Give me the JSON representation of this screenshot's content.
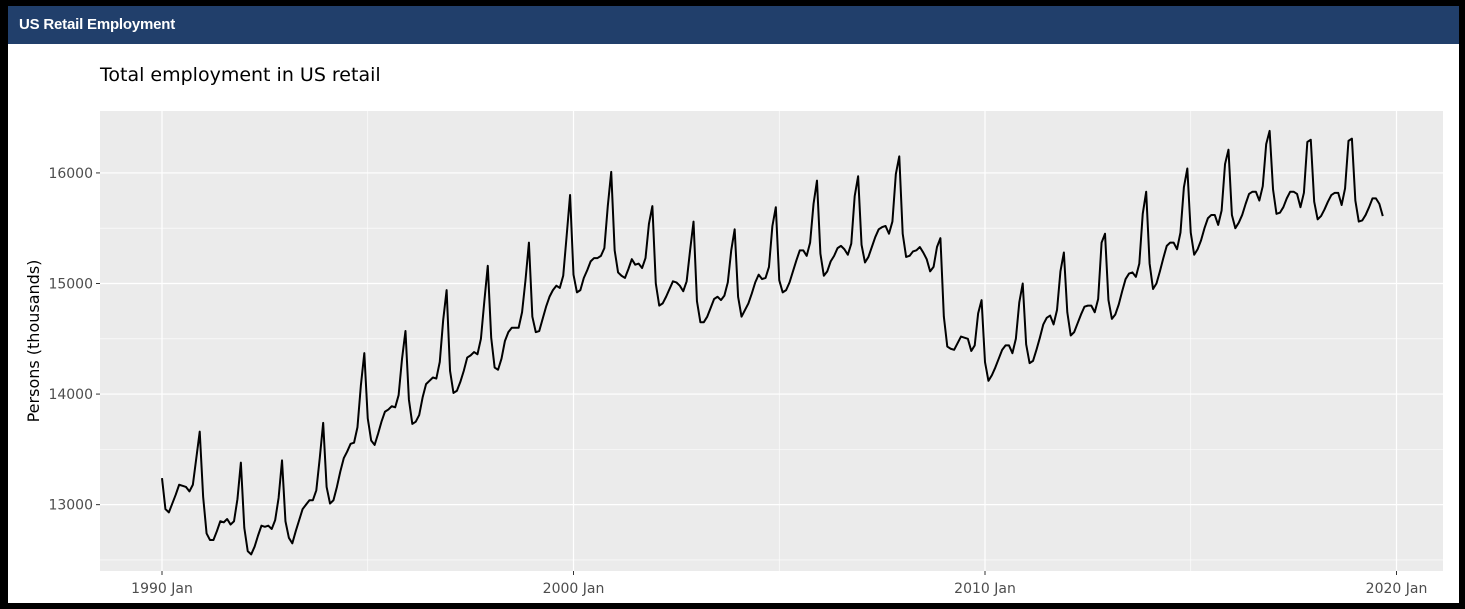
{
  "panel": {
    "title": "US Retail Employment"
  },
  "colors": {
    "header": "#213f6b",
    "plot_bg": "#ebebeb",
    "grid": "#ffffff",
    "line": "#000000",
    "tick_text": "#4d4d4d"
  },
  "chart_data": {
    "type": "line",
    "title": "Total employment in US retail",
    "xlabel": "",
    "ylabel": "Persons (thousands)",
    "x_start": "1990 Jan",
    "frequency": "monthly",
    "x_ticks": [
      "1990 Jan",
      "2000 Jan",
      "2010 Jan",
      "2020 Jan"
    ],
    "y_ticks": [
      13000,
      14000,
      15000,
      16000
    ],
    "ylim": [
      12400,
      16560
    ],
    "grid": true,
    "series": [
      {
        "values": [
          13240,
          12960,
          12930,
          13010,
          13090,
          13180,
          13170,
          13160,
          13120,
          13180,
          13420,
          13660,
          13070,
          12740,
          12680,
          12680,
          12760,
          12850,
          12840,
          12870,
          12820,
          12850,
          13050,
          13380,
          12790,
          12580,
          12550,
          12620,
          12720,
          12810,
          12800,
          12810,
          12780,
          12860,
          13060,
          13400,
          12850,
          12700,
          12650,
          12760,
          12860,
          12960,
          13000,
          13040,
          13040,
          13130,
          13420,
          13740,
          13160,
          13010,
          13040,
          13160,
          13300,
          13420,
          13480,
          13550,
          13560,
          13700,
          14080,
          14370,
          13780,
          13580,
          13540,
          13640,
          13750,
          13840,
          13860,
          13890,
          13880,
          13990,
          14320,
          14570,
          13950,
          13730,
          13750,
          13810,
          13970,
          14090,
          14120,
          14150,
          14140,
          14290,
          14670,
          14940,
          14210,
          14010,
          14030,
          14110,
          14210,
          14330,
          14350,
          14380,
          14360,
          14500,
          14840,
          15160,
          14510,
          14240,
          14220,
          14320,
          14480,
          14560,
          14600,
          14600,
          14600,
          14740,
          15030,
          15370,
          14700,
          14560,
          14570,
          14680,
          14790,
          14880,
          14940,
          14980,
          14960,
          15070,
          15430,
          15800,
          15080,
          14920,
          14940,
          15050,
          15120,
          15200,
          15230,
          15230,
          15250,
          15320,
          15700,
          16010,
          15300,
          15100,
          15070,
          15050,
          15130,
          15220,
          15170,
          15180,
          15140,
          15230,
          15540,
          15700,
          15000,
          14800,
          14820,
          14880,
          14950,
          15020,
          15010,
          14980,
          14930,
          15020,
          15300,
          15560,
          14840,
          14650,
          14650,
          14700,
          14780,
          14860,
          14880,
          14850,
          14890,
          15010,
          15300,
          15490,
          14880,
          14700,
          14760,
          14820,
          14910,
          15010,
          15080,
          15040,
          15050,
          15150,
          15520,
          15690,
          15030,
          14920,
          14940,
          15010,
          15110,
          15210,
          15300,
          15300,
          15250,
          15370,
          15720,
          15930,
          15270,
          15070,
          15110,
          15200,
          15250,
          15320,
          15340,
          15310,
          15260,
          15360,
          15790,
          15970,
          15350,
          15190,
          15240,
          15330,
          15420,
          15490,
          15510,
          15520,
          15450,
          15560,
          15990,
          16150,
          15450,
          15240,
          15250,
          15290,
          15300,
          15330,
          15280,
          15220,
          15110,
          15150,
          15330,
          15410,
          14700,
          14430,
          14410,
          14400,
          14460,
          14520,
          14510,
          14500,
          14390,
          14440,
          14730,
          14850,
          14290,
          14120,
          14170,
          14240,
          14320,
          14400,
          14440,
          14440,
          14370,
          14500,
          14830,
          15000,
          14450,
          14280,
          14300,
          14400,
          14510,
          14630,
          14690,
          14710,
          14630,
          14760,
          15110,
          15280,
          14740,
          14530,
          14560,
          14640,
          14720,
          14790,
          14800,
          14800,
          14740,
          14860,
          15370,
          15450,
          14850,
          14680,
          14720,
          14810,
          14930,
          15040,
          15090,
          15100,
          15060,
          15180,
          15630,
          15830,
          15180,
          14950,
          15000,
          15110,
          15230,
          15340,
          15370,
          15370,
          15310,
          15460,
          15870,
          16040,
          15460,
          15260,
          15310,
          15390,
          15500,
          15590,
          15620,
          15620,
          15530,
          15660,
          16080,
          16210,
          15620,
          15500,
          15550,
          15620,
          15720,
          15810,
          15830,
          15830,
          15750,
          15880,
          16260,
          16380,
          15850,
          15630,
          15640,
          15690,
          15770,
          15830,
          15830,
          15810,
          15690,
          15820,
          16280,
          16300,
          15740,
          15580,
          15610,
          15670,
          15740,
          15800,
          15820,
          15820,
          15710,
          15860,
          16290,
          16310,
          15750,
          15560,
          15570,
          15620,
          15690,
          15770,
          15770,
          15720,
          15610
        ]
      }
    ]
  }
}
